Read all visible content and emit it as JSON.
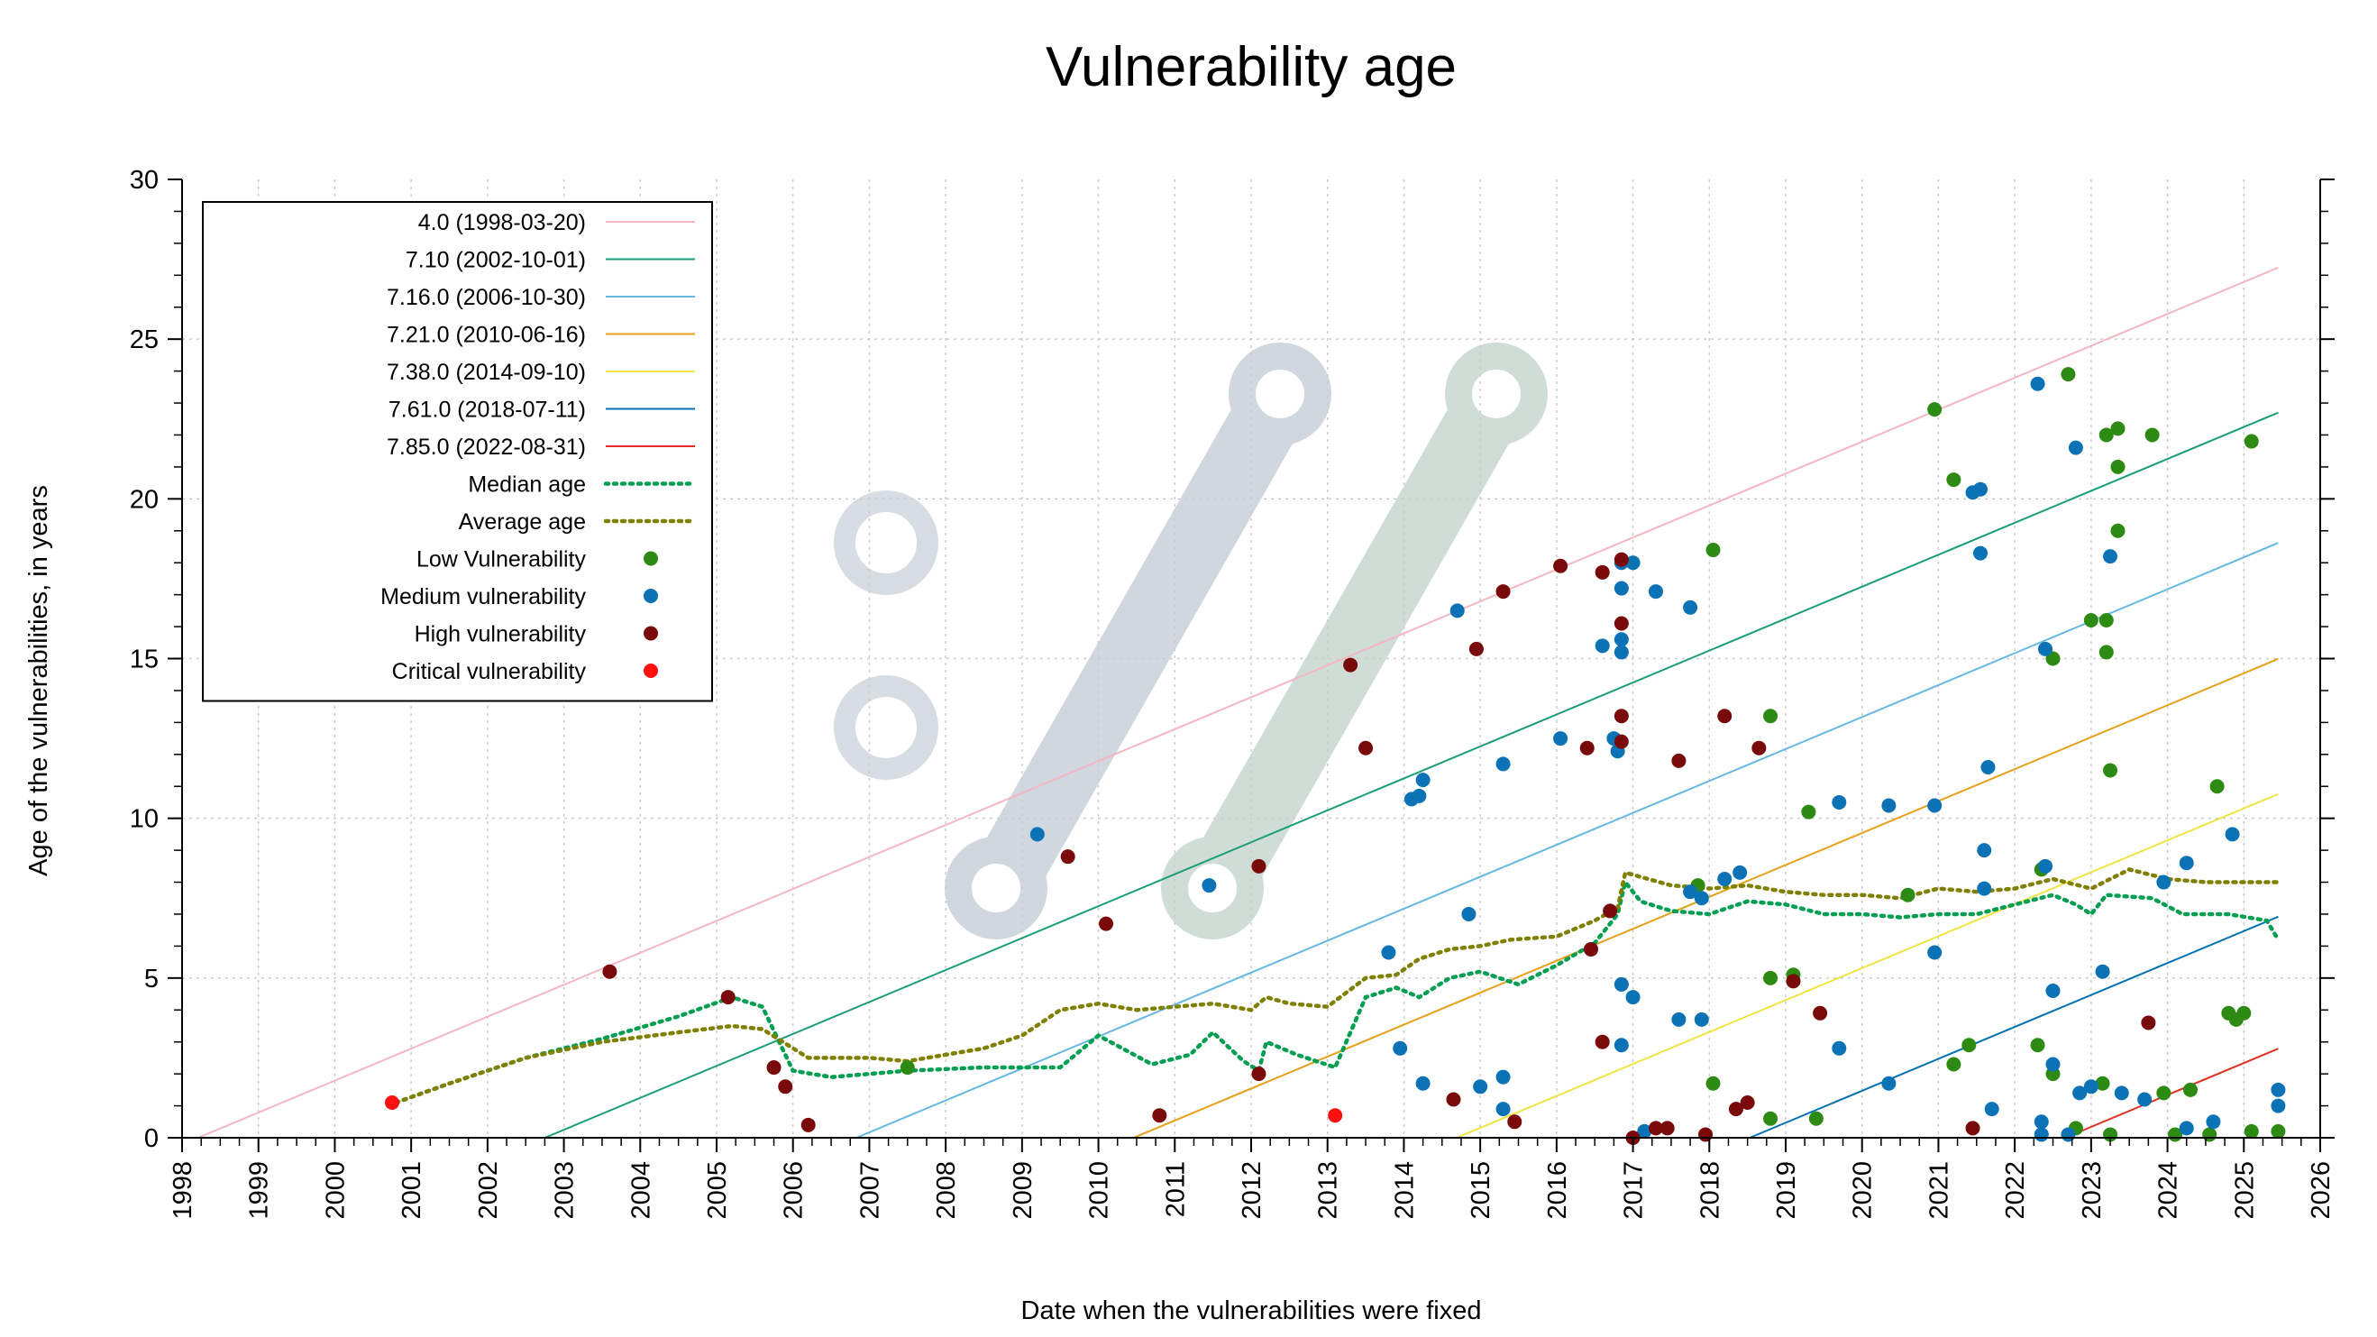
{
  "chart_data": {
    "type": "scatter",
    "title": "Vulnerability age",
    "xlabel": "Date when the vulnerabilities were fixed",
    "ylabel": "Age of the vulnerabilities, in years",
    "xlim": [
      1998,
      2026
    ],
    "ylim": [
      0,
      30
    ],
    "x_ticks": [
      "1998",
      "1999",
      "2000",
      "2001",
      "2002",
      "2003",
      "2004",
      "2005",
      "2006",
      "2007",
      "2008",
      "2009",
      "2010",
      "2011",
      "2012",
      "2013",
      "2014",
      "2015",
      "2016",
      "2017",
      "2018",
      "2019",
      "2020",
      "2021",
      "2022",
      "2023",
      "2024",
      "2025",
      "2026"
    ],
    "y_ticks": [
      "0",
      "5",
      "10",
      "15",
      "20",
      "25",
      "30"
    ],
    "grid": true,
    "legend_position": "top-left",
    "release_lines": [
      {
        "name": "4.0 (1998-03-20)",
        "color": "#f4b6c2",
        "start": 1998.21,
        "end": 2025.45
      },
      {
        "name": "7.10 (2002-10-01)",
        "color": "#1a9e77",
        "start": 2002.75,
        "end": 2025.45
      },
      {
        "name": "7.16.0 (2006-10-30)",
        "color": "#66b8e3",
        "start": 2006.83,
        "end": 2025.45
      },
      {
        "name": "7.21.0 (2010-06-16)",
        "color": "#e6a019",
        "start": 2010.46,
        "end": 2025.45
      },
      {
        "name": "7.38.0 (2014-09-10)",
        "color": "#f0e442",
        "start": 2014.69,
        "end": 2025.45
      },
      {
        "name": "7.61.0 (2018-07-11)",
        "color": "#0072b2",
        "start": 2018.53,
        "end": 2025.45
      },
      {
        "name": "7.85.0 (2022-08-31)",
        "color": "#e03020",
        "start": 2022.66,
        "end": 2025.45
      }
    ],
    "median_age": {
      "name": "Median age",
      "color": "#009e50",
      "points": [
        [
          2000.8,
          1.1
        ],
        [
          2001.5,
          1.7
        ],
        [
          2002.5,
          2.5
        ],
        [
          2003.5,
          3.1
        ],
        [
          2004.5,
          3.8
        ],
        [
          2005.2,
          4.4
        ],
        [
          2005.6,
          4.1
        ],
        [
          2006.0,
          2.1
        ],
        [
          2006.5,
          1.9
        ],
        [
          2007.5,
          2.1
        ],
        [
          2008.5,
          2.2
        ],
        [
          2009.5,
          2.2
        ],
        [
          2010.0,
          3.2
        ],
        [
          2010.7,
          2.3
        ],
        [
          2011.2,
          2.6
        ],
        [
          2011.5,
          3.3
        ],
        [
          2011.9,
          2.4
        ],
        [
          2012.1,
          2.1
        ],
        [
          2012.2,
          3.0
        ],
        [
          2012.6,
          2.6
        ],
        [
          2013.1,
          2.2
        ],
        [
          2013.5,
          4.4
        ],
        [
          2013.9,
          4.7
        ],
        [
          2014.2,
          4.4
        ],
        [
          2014.6,
          5.0
        ],
        [
          2015.0,
          5.2
        ],
        [
          2015.5,
          4.8
        ],
        [
          2016.0,
          5.4
        ],
        [
          2016.5,
          6.1
        ],
        [
          2016.8,
          7.0
        ],
        [
          2016.9,
          8.0
        ],
        [
          2017.1,
          7.4
        ],
        [
          2017.5,
          7.1
        ],
        [
          2018.0,
          7.0
        ],
        [
          2018.5,
          7.4
        ],
        [
          2019.0,
          7.3
        ],
        [
          2019.5,
          7.0
        ],
        [
          2020.0,
          7.0
        ],
        [
          2020.5,
          6.9
        ],
        [
          2021.0,
          7.0
        ],
        [
          2021.5,
          7.0
        ],
        [
          2022.0,
          7.3
        ],
        [
          2022.5,
          7.6
        ],
        [
          2022.8,
          7.3
        ],
        [
          2023.0,
          7.0
        ],
        [
          2023.2,
          7.6
        ],
        [
          2023.8,
          7.5
        ],
        [
          2024.2,
          7.0
        ],
        [
          2024.8,
          7.0
        ],
        [
          2025.3,
          6.8
        ],
        [
          2025.45,
          6.2
        ]
      ]
    },
    "average_age": {
      "name": "Average age",
      "color": "#808000",
      "points": [
        [
          2000.8,
          1.1
        ],
        [
          2001.5,
          1.7
        ],
        [
          2002.5,
          2.5
        ],
        [
          2003.5,
          3.0
        ],
        [
          2004.5,
          3.3
        ],
        [
          2005.2,
          3.5
        ],
        [
          2005.6,
          3.4
        ],
        [
          2006.2,
          2.5
        ],
        [
          2007.0,
          2.5
        ],
        [
          2007.5,
          2.4
        ],
        [
          2008.5,
          2.8
        ],
        [
          2009.0,
          3.2
        ],
        [
          2009.5,
          4.0
        ],
        [
          2010.0,
          4.2
        ],
        [
          2010.5,
          4.0
        ],
        [
          2011.0,
          4.1
        ],
        [
          2011.5,
          4.2
        ],
        [
          2012.0,
          4.0
        ],
        [
          2012.2,
          4.4
        ],
        [
          2012.5,
          4.2
        ],
        [
          2013.0,
          4.1
        ],
        [
          2013.5,
          5.0
        ],
        [
          2013.9,
          5.1
        ],
        [
          2014.2,
          5.6
        ],
        [
          2014.6,
          5.9
        ],
        [
          2015.0,
          6.0
        ],
        [
          2015.4,
          6.2
        ],
        [
          2016.0,
          6.3
        ],
        [
          2016.5,
          6.8
        ],
        [
          2016.8,
          7.2
        ],
        [
          2016.9,
          8.3
        ],
        [
          2017.5,
          7.9
        ],
        [
          2018.0,
          7.8
        ],
        [
          2018.5,
          7.9
        ],
        [
          2019.0,
          7.7
        ],
        [
          2019.5,
          7.6
        ],
        [
          2020.0,
          7.6
        ],
        [
          2020.5,
          7.5
        ],
        [
          2021.0,
          7.8
        ],
        [
          2021.5,
          7.7
        ],
        [
          2022.0,
          7.8
        ],
        [
          2022.5,
          8.1
        ],
        [
          2023.0,
          7.8
        ],
        [
          2023.5,
          8.4
        ],
        [
          2024.0,
          8.1
        ],
        [
          2024.5,
          8.0
        ],
        [
          2025.45,
          8.0
        ]
      ]
    },
    "scatter_series": [
      {
        "name": "Low Vulnerability",
        "color": "#2d8a12",
        "points": [
          [
            2007.5,
            2.2
          ],
          [
            2017.85,
            7.9
          ],
          [
            2018.05,
            1.7
          ],
          [
            2018.05,
            18.4
          ],
          [
            2018.8,
            0.6
          ],
          [
            2018.8,
            5.0
          ],
          [
            2018.8,
            13.2
          ],
          [
            2019.1,
            5.1
          ],
          [
            2019.3,
            10.2
          ],
          [
            2019.4,
            0.6
          ],
          [
            2020.6,
            7.6
          ],
          [
            2020.95,
            22.8
          ],
          [
            2021.2,
            2.3
          ],
          [
            2021.2,
            20.6
          ],
          [
            2021.4,
            2.9
          ],
          [
            2022.3,
            2.9
          ],
          [
            2022.35,
            8.4
          ],
          [
            2022.5,
            15.0
          ],
          [
            2022.5,
            2.0
          ],
          [
            2022.7,
            23.9
          ],
          [
            2022.8,
            0.3
          ],
          [
            2023.0,
            16.2
          ],
          [
            2023.2,
            15.2
          ],
          [
            2023.2,
            16.2
          ],
          [
            2023.2,
            22.0
          ],
          [
            2023.25,
            0.1
          ],
          [
            2023.35,
            22.2
          ],
          [
            2023.35,
            21.0
          ],
          [
            2023.35,
            19.0
          ],
          [
            2023.25,
            11.5
          ],
          [
            2023.15,
            1.7
          ],
          [
            2023.8,
            22.0
          ],
          [
            2023.95,
            1.4
          ],
          [
            2024.1,
            0.1
          ],
          [
            2024.3,
            1.5
          ],
          [
            2024.55,
            0.1
          ],
          [
            2024.65,
            11.0
          ],
          [
            2024.8,
            3.9
          ],
          [
            2024.9,
            3.7
          ],
          [
            2025.0,
            3.9
          ],
          [
            2025.1,
            0.2
          ],
          [
            2025.1,
            21.8
          ],
          [
            2025.45,
            0.2
          ]
        ]
      },
      {
        "name": "Medium vulnerability",
        "color": "#0b72b6",
        "points": [
          [
            2009.2,
            9.5
          ],
          [
            2011.45,
            7.9
          ],
          [
            2013.8,
            5.8
          ],
          [
            2013.95,
            2.8
          ],
          [
            2014.1,
            10.6
          ],
          [
            2014.2,
            10.7
          ],
          [
            2014.25,
            11.2
          ],
          [
            2014.25,
            1.7
          ],
          [
            2014.7,
            16.5
          ],
          [
            2014.85,
            7.0
          ],
          [
            2015.0,
            1.6
          ],
          [
            2015.3,
            1.9
          ],
          [
            2015.3,
            0.9
          ],
          [
            2015.3,
            11.7
          ],
          [
            2016.05,
            12.5
          ],
          [
            2016.6,
            15.4
          ],
          [
            2016.75,
            12.5
          ],
          [
            2016.8,
            12.1
          ],
          [
            2016.85,
            15.2
          ],
          [
            2016.85,
            15.6
          ],
          [
            2016.85,
            17.2
          ],
          [
            2016.85,
            18.0
          ],
          [
            2016.85,
            4.8
          ],
          [
            2016.85,
            2.9
          ],
          [
            2017.0,
            18.0
          ],
          [
            2017.0,
            4.4
          ],
          [
            2017.15,
            0.2
          ],
          [
            2017.3,
            17.1
          ],
          [
            2017.6,
            3.7
          ],
          [
            2017.75,
            16.6
          ],
          [
            2017.75,
            7.7
          ],
          [
            2017.9,
            7.5
          ],
          [
            2017.9,
            3.7
          ],
          [
            2018.2,
            8.1
          ],
          [
            2018.4,
            8.3
          ],
          [
            2019.7,
            10.5
          ],
          [
            2019.7,
            2.8
          ],
          [
            2020.35,
            10.4
          ],
          [
            2020.35,
            1.7
          ],
          [
            2020.95,
            10.4
          ],
          [
            2020.95,
            5.8
          ],
          [
            2021.45,
            20.2
          ],
          [
            2021.55,
            20.3
          ],
          [
            2021.55,
            18.3
          ],
          [
            2021.6,
            9.0
          ],
          [
            2021.6,
            7.8
          ],
          [
            2021.65,
            11.6
          ],
          [
            2021.7,
            0.9
          ],
          [
            2022.3,
            23.6
          ],
          [
            2022.35,
            0.1
          ],
          [
            2022.35,
            0.5
          ],
          [
            2022.4,
            15.3
          ],
          [
            2022.4,
            8.5
          ],
          [
            2022.5,
            2.3
          ],
          [
            2022.5,
            4.6
          ],
          [
            2022.7,
            0.1
          ],
          [
            2022.8,
            21.6
          ],
          [
            2022.85,
            1.4
          ],
          [
            2023.0,
            1.6
          ],
          [
            2023.15,
            5.2
          ],
          [
            2023.25,
            18.2
          ],
          [
            2023.4,
            1.4
          ],
          [
            2023.7,
            1.2
          ],
          [
            2023.95,
            8.0
          ],
          [
            2024.25,
            8.6
          ],
          [
            2024.25,
            0.3
          ],
          [
            2024.6,
            0.5
          ],
          [
            2024.85,
            9.5
          ],
          [
            2025.45,
            1.0
          ],
          [
            2025.45,
            1.5
          ]
        ]
      },
      {
        "name": "High vulnerability",
        "color": "#7a0a0a",
        "points": [
          [
            2003.6,
            5.2
          ],
          [
            2005.15,
            4.4
          ],
          [
            2005.75,
            2.2
          ],
          [
            2005.9,
            1.6
          ],
          [
            2006.2,
            0.4
          ],
          [
            2009.6,
            8.8
          ],
          [
            2010.1,
            6.7
          ],
          [
            2010.8,
            0.7
          ],
          [
            2012.1,
            8.5
          ],
          [
            2012.1,
            2.0
          ],
          [
            2013.3,
            14.8
          ],
          [
            2013.5,
            12.2
          ],
          [
            2014.65,
            1.2
          ],
          [
            2014.95,
            15.3
          ],
          [
            2015.3,
            17.1
          ],
          [
            2015.45,
            0.5
          ],
          [
            2016.05,
            17.9
          ],
          [
            2016.4,
            12.2
          ],
          [
            2016.45,
            5.9
          ],
          [
            2016.6,
            17.7
          ],
          [
            2016.6,
            3.0
          ],
          [
            2016.7,
            7.1
          ],
          [
            2016.85,
            18.1
          ],
          [
            2016.85,
            16.1
          ],
          [
            2016.85,
            13.2
          ],
          [
            2016.85,
            12.4
          ],
          [
            2017.0,
            0.0
          ],
          [
            2017.3,
            0.3
          ],
          [
            2017.45,
            0.3
          ],
          [
            2017.6,
            11.8
          ],
          [
            2017.95,
            0.1
          ],
          [
            2018.2,
            13.2
          ],
          [
            2018.35,
            0.9
          ],
          [
            2018.5,
            1.1
          ],
          [
            2018.65,
            12.2
          ],
          [
            2019.1,
            4.9
          ],
          [
            2019.45,
            3.9
          ],
          [
            2021.45,
            0.3
          ],
          [
            2023.75,
            3.6
          ]
        ]
      },
      {
        "name": "Critical vulnerability",
        "color": "#ff1010",
        "points": [
          [
            2000.75,
            1.1
          ],
          [
            2013.1,
            0.7
          ]
        ]
      }
    ],
    "legend": [
      {
        "label": "4.0 (1998-03-20)",
        "kind": "line",
        "color": "#f4b6c2"
      },
      {
        "label": "7.10 (2002-10-01)",
        "kind": "line",
        "color": "#1a9e77"
      },
      {
        "label": "7.16.0 (2006-10-30)",
        "kind": "line",
        "color": "#66b8e3"
      },
      {
        "label": "7.21.0 (2010-06-16)",
        "kind": "line",
        "color": "#e6a019"
      },
      {
        "label": "7.38.0 (2014-09-10)",
        "kind": "line",
        "color": "#f0e442"
      },
      {
        "label": "7.61.0 (2018-07-11)",
        "kind": "line",
        "color": "#0072b2"
      },
      {
        "label": "7.85.0 (2022-08-31)",
        "kind": "line",
        "color": "#e03020"
      },
      {
        "label": "Median age",
        "kind": "dotted",
        "color": "#009e50"
      },
      {
        "label": "Average age",
        "kind": "dotted",
        "color": "#808000"
      },
      {
        "label": "Low Vulnerability",
        "kind": "point",
        "color": "#2d8a12"
      },
      {
        "label": "Medium vulnerability",
        "kind": "point",
        "color": "#0b72b6"
      },
      {
        "label": "High vulnerability",
        "kind": "point",
        "color": "#7a0a0a"
      },
      {
        "label": "Critical vulnerability",
        "kind": "point",
        "color": "#ff1010"
      }
    ]
  }
}
